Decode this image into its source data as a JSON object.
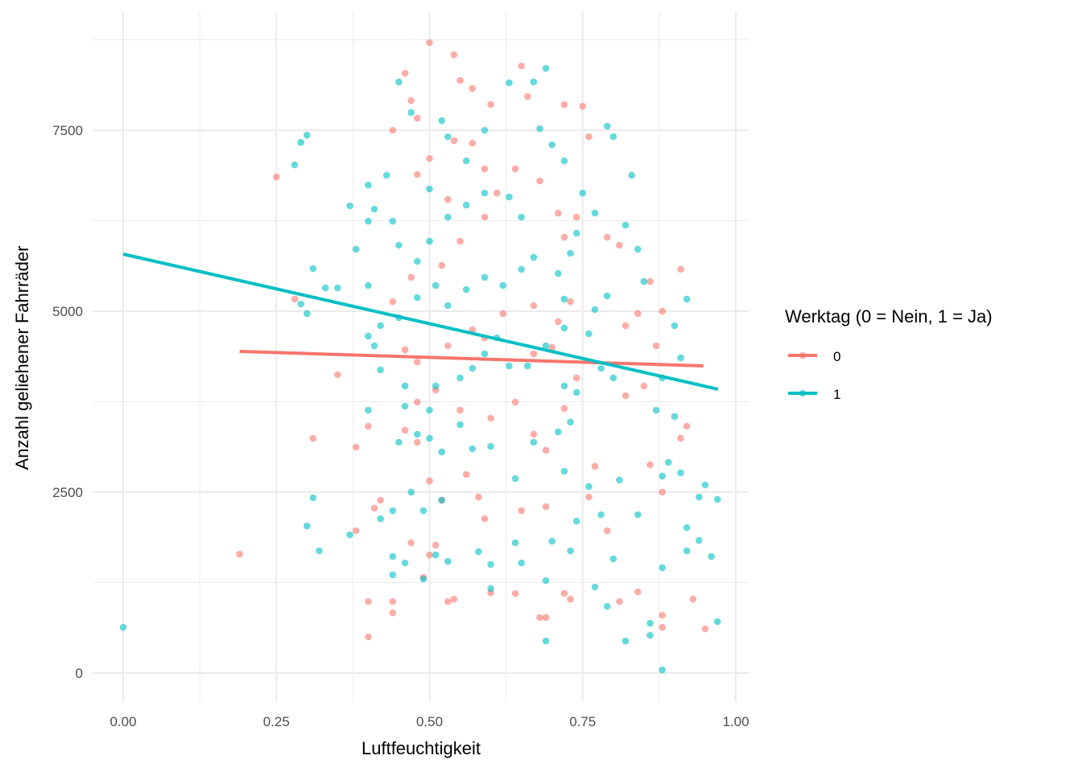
{
  "chart_data": {
    "type": "scatter",
    "title": "",
    "xlabel": "Luftfeuchtigkeit",
    "ylabel": "Anzahl geliehener Fahrräder",
    "xlim": [
      -0.05,
      1.02
    ],
    "ylim": [
      -400,
      8950
    ],
    "x_ticks": [
      0,
      0.25,
      0.5,
      0.75,
      1
    ],
    "x_tick_labels": [
      "0.00",
      "0.25",
      "0.50",
      "0.75",
      "1.00"
    ],
    "y_ticks": [
      0,
      2500,
      5000,
      7500
    ],
    "y_tick_labels": [
      "0",
      "2500",
      "5000",
      "7500"
    ],
    "grid": true,
    "legend": {
      "title": "Werktag (0 = Nein, 1 = Ja)",
      "placement": "right",
      "entries": [
        "0",
        "1"
      ]
    },
    "series": [
      {
        "name": "0",
        "color": "#F8766D",
        "trend": {
          "x": [
            0.19,
            0.947
          ],
          "y": [
            4444,
            4244
          ]
        },
        "points": [
          [
            0.19,
            1644
          ],
          [
            0.25,
            6856
          ],
          [
            0.28,
            5167
          ],
          [
            0.31,
            3244
          ],
          [
            0.35,
            4122
          ],
          [
            0.38,
            3122
          ],
          [
            0.38,
            1967
          ],
          [
            0.4,
            989
          ],
          [
            0.4,
            500
          ],
          [
            0.41,
            2278
          ],
          [
            0.44,
            989
          ],
          [
            0.44,
            833
          ],
          [
            0.4,
            3411
          ],
          [
            0.42,
            2389
          ],
          [
            0.44,
            7500
          ],
          [
            0.46,
            8289
          ],
          [
            0.47,
            7911
          ],
          [
            0.48,
            7667
          ],
          [
            0.5,
            8711
          ],
          [
            0.54,
            8544
          ],
          [
            0.55,
            8189
          ],
          [
            0.57,
            8078
          ],
          [
            0.6,
            7856
          ],
          [
            0.65,
            8389
          ],
          [
            0.66,
            7967
          ],
          [
            0.72,
            7856
          ],
          [
            0.75,
            7833
          ],
          [
            0.76,
            7411
          ],
          [
            0.79,
            6022
          ],
          [
            0.81,
            5911
          ],
          [
            0.86,
            5411
          ],
          [
            0.91,
            5578
          ],
          [
            0.84,
            4967
          ],
          [
            0.82,
            4800
          ],
          [
            0.87,
            4522
          ],
          [
            0.88,
            5000
          ],
          [
            0.85,
            3967
          ],
          [
            0.82,
            3833
          ],
          [
            0.92,
            3411
          ],
          [
            0.91,
            3244
          ],
          [
            0.86,
            2878
          ],
          [
            0.88,
            2500
          ],
          [
            0.84,
            1122
          ],
          [
            0.81,
            989
          ],
          [
            0.93,
            1022
          ],
          [
            0.95,
            611
          ],
          [
            0.88,
            800
          ],
          [
            0.88,
            633
          ],
          [
            0.79,
            1967
          ],
          [
            0.76,
            2433
          ],
          [
            0.77,
            2856
          ],
          [
            0.73,
            1022
          ],
          [
            0.72,
            1100
          ],
          [
            0.69,
            767
          ],
          [
            0.68,
            767
          ],
          [
            0.64,
            1100
          ],
          [
            0.6,
            1111
          ],
          [
            0.54,
            1022
          ],
          [
            0.53,
            989
          ],
          [
            0.49,
            1322
          ],
          [
            0.5,
            1633
          ],
          [
            0.51,
            1767
          ],
          [
            0.47,
            1800
          ],
          [
            0.52,
            2389
          ],
          [
            0.5,
            2656
          ],
          [
            0.58,
            2433
          ],
          [
            0.59,
            2133
          ],
          [
            0.65,
            2244
          ],
          [
            0.69,
            2300
          ],
          [
            0.56,
            2744
          ],
          [
            0.48,
            3189
          ],
          [
            0.46,
            3356
          ],
          [
            0.48,
            3744
          ],
          [
            0.51,
            3911
          ],
          [
            0.55,
            3633
          ],
          [
            0.6,
            3522
          ],
          [
            0.64,
            3744
          ],
          [
            0.67,
            3300
          ],
          [
            0.69,
            3078
          ],
          [
            0.72,
            3656
          ],
          [
            0.74,
            4078
          ],
          [
            0.7,
            4500
          ],
          [
            0.67,
            4411
          ],
          [
            0.71,
            4856
          ],
          [
            0.73,
            5133
          ],
          [
            0.67,
            5078
          ],
          [
            0.62,
            4967
          ],
          [
            0.59,
            4633
          ],
          [
            0.57,
            4744
          ],
          [
            0.53,
            4522
          ],
          [
            0.48,
            4300
          ],
          [
            0.46,
            4467
          ],
          [
            0.44,
            5133
          ],
          [
            0.47,
            5467
          ],
          [
            0.52,
            5633
          ],
          [
            0.55,
            5967
          ],
          [
            0.59,
            6300
          ],
          [
            0.61,
            6633
          ],
          [
            0.64,
            6967
          ],
          [
            0.68,
            6800
          ],
          [
            0.71,
            6356
          ],
          [
            0.72,
            6022
          ],
          [
            0.74,
            6300
          ],
          [
            0.53,
            6544
          ],
          [
            0.5,
            7111
          ],
          [
            0.48,
            6889
          ],
          [
            0.54,
            7356
          ],
          [
            0.57,
            7322
          ],
          [
            0.59,
            6967
          ]
        ]
      },
      {
        "name": "1",
        "color": "#00BFC4",
        "trend": {
          "x": [
            0.0,
            0.971
          ],
          "y": [
            5789,
            3922
          ]
        },
        "points": [
          [
            0.0,
            633
          ],
          [
            0.3,
            2033
          ],
          [
            0.31,
            2422
          ],
          [
            0.32,
            1689
          ],
          [
            0.3,
            4967
          ],
          [
            0.29,
            5100
          ],
          [
            0.31,
            5589
          ],
          [
            0.33,
            5322
          ],
          [
            0.35,
            5322
          ],
          [
            0.29,
            7333
          ],
          [
            0.3,
            7433
          ],
          [
            0.28,
            7022
          ],
          [
            0.37,
            6456
          ],
          [
            0.4,
            6744
          ],
          [
            0.41,
            6411
          ],
          [
            0.43,
            6878
          ],
          [
            0.45,
            8167
          ],
          [
            0.47,
            7744
          ],
          [
            0.5,
            6689
          ],
          [
            0.52,
            7633
          ],
          [
            0.53,
            7411
          ],
          [
            0.56,
            7078
          ],
          [
            0.59,
            7500
          ],
          [
            0.63,
            8156
          ],
          [
            0.67,
            8167
          ],
          [
            0.69,
            8356
          ],
          [
            0.68,
            7522
          ],
          [
            0.7,
            7300
          ],
          [
            0.72,
            7078
          ],
          [
            0.75,
            6633
          ],
          [
            0.79,
            7556
          ],
          [
            0.8,
            7411
          ],
          [
            0.83,
            6878
          ],
          [
            0.77,
            6356
          ],
          [
            0.82,
            6189
          ],
          [
            0.84,
            5856
          ],
          [
            0.85,
            5411
          ],
          [
            0.92,
            5167
          ],
          [
            0.9,
            4800
          ],
          [
            0.91,
            4356
          ],
          [
            0.88,
            4078
          ],
          [
            0.87,
            3633
          ],
          [
            0.9,
            3544
          ],
          [
            0.89,
            2911
          ],
          [
            0.88,
            2722
          ],
          [
            0.91,
            2767
          ],
          [
            0.95,
            2600
          ],
          [
            0.97,
            2400
          ],
          [
            0.94,
            2433
          ],
          [
            0.92,
            2011
          ],
          [
            0.94,
            1833
          ],
          [
            0.92,
            1689
          ],
          [
            0.96,
            1611
          ],
          [
            0.88,
            1456
          ],
          [
            0.86,
            689
          ],
          [
            0.86,
            522
          ],
          [
            0.88,
            44
          ],
          [
            0.82,
            444
          ],
          [
            0.97,
            711
          ],
          [
            0.79,
            922
          ],
          [
            0.77,
            1189
          ],
          [
            0.8,
            1578
          ],
          [
            0.78,
            2189
          ],
          [
            0.84,
            2189
          ],
          [
            0.81,
            2667
          ],
          [
            0.76,
            2578
          ],
          [
            0.72,
            2789
          ],
          [
            0.74,
            2100
          ],
          [
            0.73,
            1689
          ],
          [
            0.69,
            1278
          ],
          [
            0.69,
            444
          ],
          [
            0.7,
            1822
          ],
          [
            0.65,
            1522
          ],
          [
            0.64,
            1800
          ],
          [
            0.6,
            1500
          ],
          [
            0.58,
            1678
          ],
          [
            0.6,
            1167
          ],
          [
            0.53,
            1544
          ],
          [
            0.51,
            1633
          ],
          [
            0.49,
            1300
          ],
          [
            0.46,
            1522
          ],
          [
            0.44,
            1611
          ],
          [
            0.44,
            1356
          ],
          [
            0.42,
            2133
          ],
          [
            0.44,
            2244
          ],
          [
            0.47,
            2500
          ],
          [
            0.49,
            2244
          ],
          [
            0.52,
            2389
          ],
          [
            0.45,
            3189
          ],
          [
            0.48,
            3300
          ],
          [
            0.5,
            3244
          ],
          [
            0.52,
            3056
          ],
          [
            0.55,
            3433
          ],
          [
            0.57,
            3100
          ],
          [
            0.6,
            3133
          ],
          [
            0.64,
            2689
          ],
          [
            0.67,
            3189
          ],
          [
            0.71,
            3333
          ],
          [
            0.73,
            3467
          ],
          [
            0.72,
            3967
          ],
          [
            0.74,
            3878
          ],
          [
            0.78,
            4211
          ],
          [
            0.8,
            4078
          ],
          [
            0.76,
            4689
          ],
          [
            0.77,
            5022
          ],
          [
            0.79,
            5211
          ],
          [
            0.72,
            5167
          ],
          [
            0.72,
            4767
          ],
          [
            0.69,
            4522
          ],
          [
            0.66,
            4244
          ],
          [
            0.63,
            4244
          ],
          [
            0.61,
            4633
          ],
          [
            0.59,
            4411
          ],
          [
            0.57,
            4211
          ],
          [
            0.55,
            4078
          ],
          [
            0.51,
            3967
          ],
          [
            0.5,
            3633
          ],
          [
            0.46,
            3689
          ],
          [
            0.46,
            3967
          ],
          [
            0.42,
            4189
          ],
          [
            0.41,
            4522
          ],
          [
            0.42,
            4800
          ],
          [
            0.45,
            4911
          ],
          [
            0.48,
            5189
          ],
          [
            0.51,
            5356
          ],
          [
            0.53,
            5078
          ],
          [
            0.56,
            5300
          ],
          [
            0.59,
            5467
          ],
          [
            0.62,
            5356
          ],
          [
            0.65,
            5578
          ],
          [
            0.67,
            5744
          ],
          [
            0.71,
            5522
          ],
          [
            0.73,
            5800
          ],
          [
            0.74,
            6078
          ],
          [
            0.65,
            6300
          ],
          [
            0.63,
            6578
          ],
          [
            0.59,
            6633
          ],
          [
            0.56,
            6467
          ],
          [
            0.53,
            6300
          ],
          [
            0.5,
            5967
          ],
          [
            0.48,
            5689
          ],
          [
            0.45,
            5911
          ],
          [
            0.44,
            6244
          ],
          [
            0.4,
            6244
          ],
          [
            0.38,
            5856
          ],
          [
            0.4,
            5356
          ],
          [
            0.4,
            4656
          ],
          [
            0.37,
            1911
          ],
          [
            0.4,
            3633
          ]
        ]
      }
    ]
  }
}
